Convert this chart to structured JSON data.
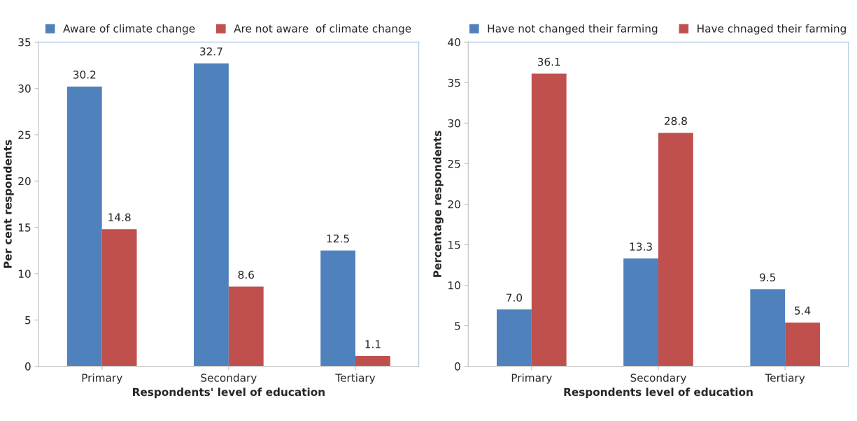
{
  "chart_data": [
    {
      "type": "bar",
      "xlabel": "Respondents' level of education",
      "ylabel": "Per cent respondents",
      "categories": [
        "Primary",
        "Secondary",
        "Tertiary"
      ],
      "series": [
        {
          "name": "Aware of climate change",
          "color": "#4f81bd",
          "values": [
            30.2,
            32.7,
            12.5
          ]
        },
        {
          "name": "Are not aware  of climate change",
          "color": "#c0504d",
          "values": [
            14.8,
            8.6,
            1.1
          ]
        }
      ],
      "ylim": [
        0,
        35
      ],
      "yticks": [
        0,
        5,
        10,
        15,
        20,
        25,
        30,
        35
      ],
      "grid": false,
      "legend": "top",
      "data_labels": true
    },
    {
      "type": "bar",
      "xlabel": "Respondents level of education",
      "ylabel": "Percentage respondents",
      "categories": [
        "Primary",
        "Secondary",
        "Tertiary"
      ],
      "series": [
        {
          "name": "Have not changed their farming",
          "color": "#4f81bd",
          "values": [
            7.0,
            13.3,
            9.5
          ],
          "value_labels": [
            "7.0",
            "13.3",
            "9.5"
          ]
        },
        {
          "name": "Have chnaged their farming",
          "color": "#c0504d",
          "values": [
            36.1,
            28.8,
            5.4
          ],
          "value_labels": [
            "36.1",
            "28.8",
            "5.4"
          ]
        }
      ],
      "ylim": [
        0,
        40
      ],
      "yticks": [
        0,
        5,
        10,
        15,
        20,
        25,
        30,
        35,
        40
      ],
      "grid": false,
      "legend": "top"
    }
  ]
}
